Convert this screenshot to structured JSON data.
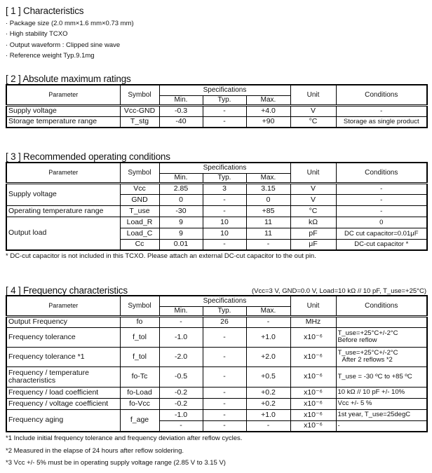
{
  "s1": {
    "title": "[ 1 ]  Characteristics",
    "bullets": [
      "· Package size (2.0 mm×1.6 mm×0.73 mm)",
      "· High stability TCXO",
      "· Output waveform : Clipped sine wave",
      "· Reference weight Typ.9.1mg"
    ]
  },
  "header": {
    "parameter": "Parameter",
    "symbol": "Symbol",
    "specifications": "Specifications",
    "min": "Min.",
    "typ": "Typ.",
    "max": "Max.",
    "unit": "Unit",
    "conditions": "Conditions"
  },
  "s2": {
    "title": "[ 2 ] Absolute maximum ratings",
    "rows": [
      {
        "param": "Supply voltage",
        "symbol": "Vcc-GND",
        "min": "-0.3",
        "typ": "-",
        "max": "+4.0",
        "unit": "V",
        "cond": "-"
      },
      {
        "param": "Storage temperature range",
        "symbol": "T_stg",
        "min": "-40",
        "typ": "-",
        "max": "+90",
        "unit": "°C",
        "cond": "Storage as single product"
      }
    ]
  },
  "s3": {
    "title": "[ 3 ] Recommended operating conditions",
    "rows": [
      {
        "param": "Supply voltage",
        "symbol": "Vcc",
        "min": "2.85",
        "typ": "3",
        "max": "3.15",
        "unit": "V",
        "cond": "-"
      },
      {
        "param": null,
        "symbol": "GND",
        "min": "0",
        "typ": "-",
        "max": "0",
        "unit": "V",
        "cond": "-"
      },
      {
        "param": "Operating temperature range",
        "symbol": "T_use",
        "min": "-30",
        "typ": "-",
        "max": "+85",
        "unit": "°C",
        "cond": "-"
      },
      {
        "param": "Output load",
        "symbol": "Load_R",
        "min": "9",
        "typ": "10",
        "max": "11",
        "unit": "kΩ",
        "cond": "0"
      },
      {
        "param": null,
        "symbol": "Load_C",
        "min": "9",
        "typ": "10",
        "max": "11",
        "unit": "pF",
        "cond": "DC cut capacitor=0.01μF"
      },
      {
        "param": null,
        "symbol": "Cc",
        "min": "0.01",
        "typ": "-",
        "max": "-",
        "unit": "μF",
        "cond": "DC-cut capacitor *"
      }
    ],
    "note": "* DC-cut capacitor is not included in this TCXO. Please attach an external DC-cut capacitor to the out pin."
  },
  "s4": {
    "title": "[ 4 ] Frequency characteristics",
    "conditions_note": "(Vcc=3 V, GND=0.0 V, Load=10 kΩ // 10 pF, T_use=+25°C)",
    "rows": [
      {
        "param": "Output Frequency",
        "symbol": "fo",
        "min": "-",
        "typ": "26",
        "max": "-",
        "unit": "MHz",
        "cond": ""
      },
      {
        "param": "Frequency tolerance",
        "symbol": "f_tol",
        "min": "-1.0",
        "typ": "-",
        "max": "+1.0",
        "unit": "x10⁻⁶",
        "cond": "T_use=+25°C+/-2°C",
        "cond2": "Before reflow"
      },
      {
        "param": "Frequency tolerance *1",
        "symbol": "f_tol",
        "min": "-2.0",
        "typ": "-",
        "max": "+2.0",
        "unit": "x10⁻⁶",
        "cond": "T_use=+25°C+/-2°C",
        "cond2": "After 2 reflows *2"
      },
      {
        "param": "Frequency / temperature characteristics",
        "symbol": "fo-Tc",
        "min": "-0.5",
        "typ": "-",
        "max": "+0.5",
        "unit": "x10⁻⁶",
        "cond": "T_use = -30 ºC to +85 ºC"
      },
      {
        "param": "Frequency / load coefficient",
        "symbol": "fo-Load",
        "min": "-0.2",
        "typ": "-",
        "max": "+0.2",
        "unit": "x10⁻⁶",
        "cond": "10 kΩ // 10 pF +/- 10%"
      },
      {
        "param": "Frequency / voltage coefficient",
        "symbol": "fo-Vcc",
        "min": "-0.2",
        "typ": "-",
        "max": "+0.2",
        "unit": "x10⁻⁶",
        "cond": "Vcc +/- 5 %"
      },
      {
        "param": "Frequency aging",
        "symbol": "f_age",
        "min": "-1.0",
        "typ": "-",
        "max": "+1.0",
        "unit": "x10⁻⁶",
        "cond": "1st year, T_use=25degC"
      },
      {
        "param": null,
        "symbol": null,
        "min": "-",
        "typ": "-",
        "max": "-",
        "unit": "x10⁻⁶",
        "cond": "-"
      }
    ],
    "notes": [
      "*1 Include initial frequency tolerance and frequency deviation after reflow cycles.",
      "*2 Measured in the elapse of 24 hours after reflow soldering.",
      "*3 Vcc +/- 5% must be in operating supply voltage range (2.85  V to 3.15 V)"
    ]
  }
}
